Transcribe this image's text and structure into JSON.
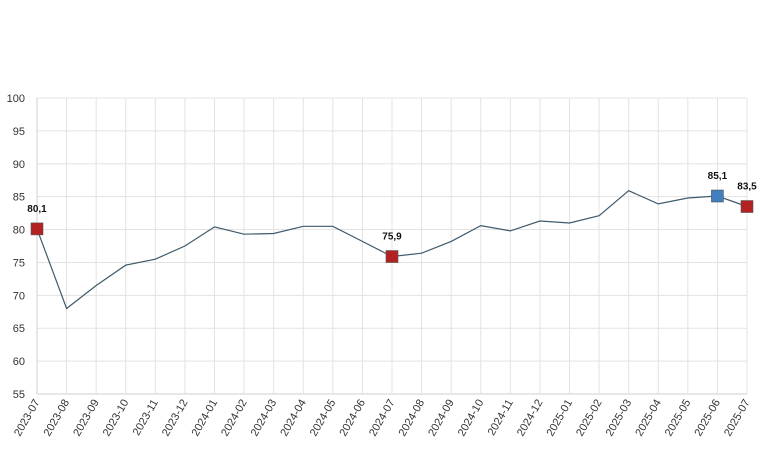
{
  "chart_data": {
    "type": "line",
    "x": [
      "2023-07",
      "2023-08",
      "2023-09",
      "2023-10",
      "2023-11",
      "2023-12",
      "2024-01",
      "2024-02",
      "2024-03",
      "2024-04",
      "2024-05",
      "2024-06",
      "2024-07",
      "2024-08",
      "2024-09",
      "2024-10",
      "2024-11",
      "2024-12",
      "2025-01",
      "2025-02",
      "2025-03",
      "2025-04",
      "2025-05",
      "2025-06",
      "2025-07"
    ],
    "series": [
      {
        "values": [
          80.1,
          68.0,
          71.5,
          74.6,
          75.5,
          77.5,
          80.4,
          79.3,
          79.4,
          80.5,
          80.5,
          78.2,
          75.9,
          76.4,
          78.2,
          80.6,
          79.8,
          81.3,
          81.0,
          82.1,
          85.9,
          83.9,
          84.8,
          85.1,
          83.5
        ]
      }
    ],
    "yticks": [
      "55",
      "60",
      "65",
      "70",
      "75",
      "80",
      "85",
      "90",
      "95",
      "100"
    ],
    "ylim": [
      55,
      100
    ],
    "grid": true,
    "line_color": "#3f5a6b",
    "highlighted_points": [
      {
        "index": 0,
        "label": "80,1",
        "color": "#b22222"
      },
      {
        "index": 12,
        "label": "75,9",
        "color": "#b22222"
      },
      {
        "index": 23,
        "label": "85,1",
        "color": "#3f7fbf"
      },
      {
        "index": 24,
        "label": "83,5",
        "color": "#b22222"
      }
    ]
  }
}
